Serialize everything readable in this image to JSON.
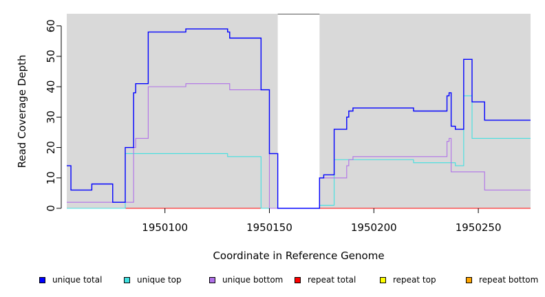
{
  "chart_data": {
    "type": "line",
    "title": "",
    "xlabel": "Coordinate in Reference Genome",
    "ylabel": "Read Coverage Depth",
    "xlim": [
      1950053,
      1950275
    ],
    "ylim": [
      0,
      64
    ],
    "xticks": [
      1950100,
      1950150,
      1950200,
      1950250
    ],
    "xtick_labels": [
      "1950100",
      "1950150",
      "1950200",
      "1950250"
    ],
    "yticks": [
      0,
      10,
      20,
      30,
      40,
      50,
      60
    ],
    "ytick_labels": [
      "0",
      "10",
      "20",
      "30",
      "40",
      "50",
      "60"
    ],
    "background_color": "#d9d9d9",
    "gap_region": [
      1950154,
      1950174
    ],
    "legend_position": "bottom",
    "series": [
      {
        "name": "unique total",
        "color": "#0000ff",
        "x": [
          1950053,
          1950055,
          1950055,
          1950065,
          1950065,
          1950075,
          1950075,
          1950081,
          1950081,
          1950085,
          1950085,
          1950086,
          1950086,
          1950092,
          1950092,
          1950110,
          1950110,
          1950130,
          1950130,
          1950131,
          1950131,
          1950146,
          1950146,
          1950150,
          1950150,
          1950154,
          1950154,
          1950174,
          1950174,
          1950176,
          1950176,
          1950181,
          1950181,
          1950187,
          1950187,
          1950188,
          1950188,
          1950190,
          1950190,
          1950219,
          1950219,
          1950235,
          1950235,
          1950236,
          1950236,
          1950237,
          1950237,
          1950239,
          1950239,
          1950243,
          1950243,
          1950247,
          1950247,
          1950253,
          1950253,
          1950275
        ],
        "y": [
          14,
          14,
          6,
          6,
          8,
          8,
          2,
          2,
          20,
          20,
          38,
          38,
          41,
          41,
          58,
          58,
          59,
          59,
          58,
          58,
          56,
          56,
          39,
          39,
          18,
          18,
          0,
          0,
          10,
          10,
          11,
          11,
          26,
          26,
          30,
          30,
          32,
          32,
          33,
          33,
          32,
          32,
          37,
          37,
          38,
          38,
          27,
          27,
          26,
          26,
          49,
          49,
          35,
          35,
          29,
          29
        ]
      },
      {
        "name": "unique top",
        "color": "#40e0e0",
        "x": [
          1950053,
          1950081,
          1950081,
          1950130,
          1950130,
          1950146,
          1950146,
          1950174,
          1950174,
          1950181,
          1950181,
          1950219,
          1950219,
          1950239,
          1950239,
          1950243,
          1950243,
          1950247,
          1950247,
          1950275
        ],
        "y": [
          0,
          0,
          18,
          18,
          17,
          17,
          0,
          0,
          1,
          1,
          16,
          16,
          15,
          15,
          14,
          14,
          37,
          37,
          23,
          23
        ]
      },
      {
        "name": "unique bottom",
        "color": "#b070e8",
        "x": [
          1950053,
          1950085,
          1950085,
          1950086,
          1950086,
          1950092,
          1950092,
          1950110,
          1950110,
          1950131,
          1950131,
          1950150,
          1950150,
          1950174,
          1950174,
          1950187,
          1950187,
          1950188,
          1950188,
          1950190,
          1950190,
          1950235,
          1950235,
          1950236,
          1950236,
          1950237,
          1950237,
          1950253,
          1950253,
          1950275
        ],
        "y": [
          2,
          2,
          20,
          20,
          23,
          23,
          40,
          40,
          41,
          41,
          39,
          39,
          0,
          0,
          10,
          10,
          14,
          14,
          16,
          16,
          17,
          17,
          22,
          22,
          23,
          23,
          12,
          12,
          6,
          6
        ]
      },
      {
        "name": "repeat total",
        "color": "#ff0000",
        "x": [
          1950053,
          1950275
        ],
        "y": [
          0,
          0
        ]
      },
      {
        "name": "repeat top",
        "color": "#ffff00",
        "x": [
          1950053,
          1950275
        ],
        "y": [
          0,
          0
        ]
      },
      {
        "name": "repeat bottom",
        "color": "#ffa500",
        "x": [
          1950053,
          1950275
        ],
        "y": [
          0,
          0
        ]
      }
    ]
  }
}
